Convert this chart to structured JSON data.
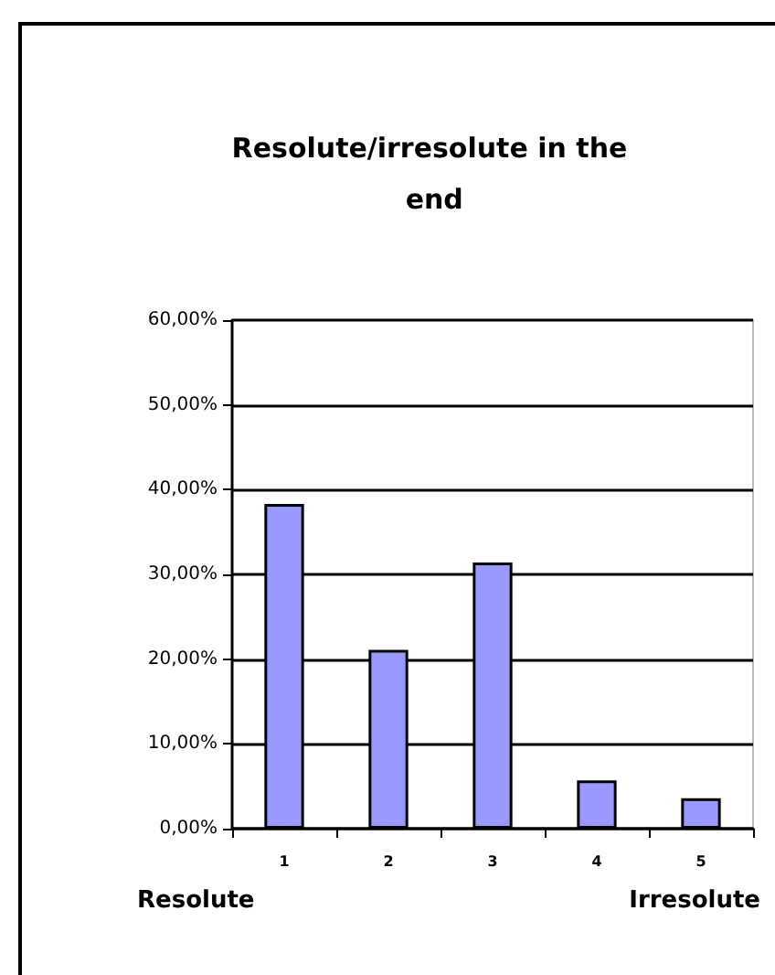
{
  "chart_data": {
    "type": "bar",
    "title": "Resolute/irresolute in the end",
    "categories": [
      "1",
      "2",
      "3",
      "4",
      "5"
    ],
    "values": [
      38.3,
      21.1,
      31.4,
      5.7,
      3.6
    ],
    "color": "#9999ff",
    "ylim": [
      0,
      60
    ],
    "yticks": [
      {
        "value": 0,
        "label": "0,00%"
      },
      {
        "value": 10,
        "label": "10,00%"
      },
      {
        "value": 20,
        "label": "20,00%"
      },
      {
        "value": 30,
        "label": "30,00%"
      },
      {
        "value": 40,
        "label": "40,00%"
      },
      {
        "value": 50,
        "label": "50,00%"
      },
      {
        "value": 60,
        "label": "60,00%"
      }
    ],
    "grid": "y",
    "annotations": [
      "Resolute",
      "Irresolute"
    ]
  }
}
